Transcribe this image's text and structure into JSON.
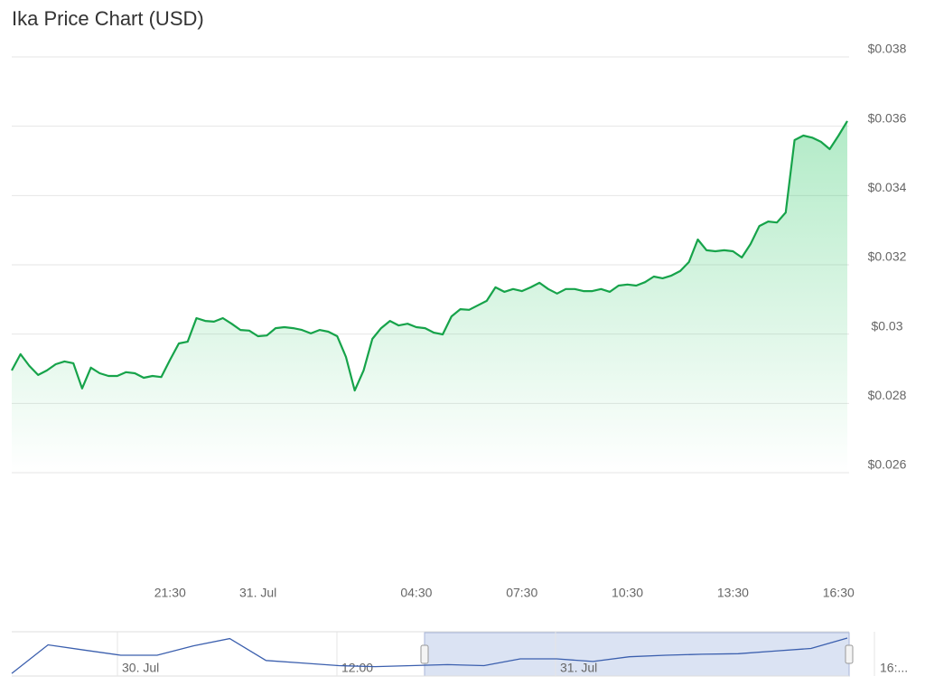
{
  "chart_data": {
    "type": "line",
    "title": "Ika Price Chart (USD)",
    "color": "#16a34a",
    "categories": [
      null,
      null,
      null,
      null,
      null,
      null,
      null,
      null,
      null,
      null,
      null,
      null,
      null,
      null,
      null,
      null,
      null,
      null,
      "21:30",
      null,
      null,
      null,
      null,
      null,
      null,
      null,
      null,
      null,
      "31. Jul",
      null,
      null,
      null,
      null,
      null,
      null,
      null,
      null,
      null,
      null,
      null,
      null,
      null,
      null,
      null,
      null,
      null,
      "04:30",
      null,
      null,
      null,
      null,
      null,
      null,
      null,
      null,
      null,
      null,
      null,
      "07:30",
      null,
      null,
      null,
      null,
      null,
      null,
      null,
      null,
      null,
      null,
      null,
      "10:30",
      null,
      null,
      null,
      null,
      null,
      null,
      null,
      null,
      null,
      null,
      null,
      "13:30",
      null,
      null,
      null,
      null,
      null,
      null,
      null,
      null,
      null,
      null,
      null,
      "16:30",
      null
    ],
    "values": [
      0.02895,
      0.02942,
      0.02908,
      0.02882,
      0.02895,
      0.02913,
      0.02921,
      0.02916,
      0.02843,
      0.02903,
      0.02887,
      0.02879,
      0.02879,
      0.0289,
      0.02887,
      0.02874,
      0.02879,
      0.02876,
      0.02926,
      0.02973,
      0.02978,
      0.03046,
      0.03038,
      0.03036,
      0.03046,
      0.0303,
      0.03012,
      0.0301,
      0.02994,
      0.02996,
      0.03017,
      0.0302,
      0.03017,
      0.03012,
      0.03002,
      0.03012,
      0.03007,
      0.02994,
      0.02934,
      0.02837,
      0.02895,
      0.02986,
      0.03017,
      0.03038,
      0.03025,
      0.0303,
      0.0302,
      0.03017,
      0.03004,
      0.02999,
      0.03051,
      0.03072,
      0.0307,
      0.03083,
      0.03096,
      0.03135,
      0.03122,
      0.0313,
      0.03124,
      0.03135,
      0.03148,
      0.0313,
      0.03117,
      0.0313,
      0.0313,
      0.03124,
      0.03124,
      0.0313,
      0.03122,
      0.0314,
      0.03143,
      0.0314,
      0.0315,
      0.03166,
      0.03161,
      0.03169,
      0.03182,
      0.03208,
      0.03273,
      0.03242,
      0.03239,
      0.03242,
      0.03239,
      0.03221,
      0.0326,
      0.03312,
      0.03325,
      0.03322,
      0.03351,
      0.0356,
      0.03573,
      0.03567,
      0.03555,
      0.03534,
      0.03573,
      0.03615
    ],
    "ylim": [
      0.026,
      0.038
    ],
    "yticks": [
      {
        "value": 0.026,
        "label": "$0.026"
      },
      {
        "value": 0.028,
        "label": "$0.028"
      },
      {
        "value": 0.03,
        "label": "$0.03"
      },
      {
        "value": 0.032,
        "label": "$0.032"
      },
      {
        "value": 0.034,
        "label": "$0.034"
      },
      {
        "value": 0.036,
        "label": "$0.036"
      },
      {
        "value": 0.038,
        "label": "$0.038"
      }
    ],
    "grid": true,
    "navigator": {
      "labels": [
        "30. Jul",
        "12:00",
        "31. Jul",
        "16:..."
      ],
      "values": [
        0.0285,
        0.034,
        0.033,
        0.032,
        0.032,
        0.0338,
        0.0352,
        0.031,
        0.0305,
        0.03,
        0.0298,
        0.03,
        0.0302,
        0.03,
        0.0313,
        0.0313,
        0.0308,
        0.0317,
        0.032,
        0.0322,
        0.0323,
        0.0328,
        0.0333,
        0.0353
      ],
      "ylim": [
        0.028,
        0.036
      ]
    }
  }
}
